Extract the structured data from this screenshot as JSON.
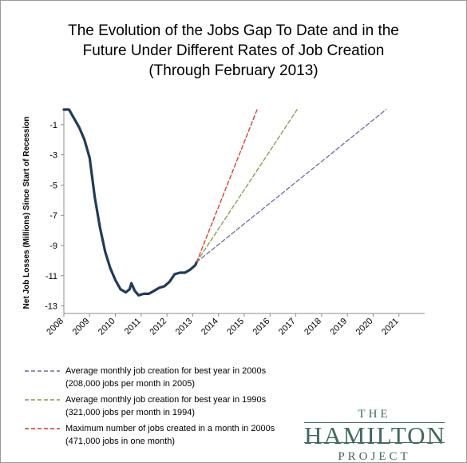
{
  "title_lines": [
    "The Evolution of the Jobs Gap To Date and in the",
    "Future Under Different Rates of Job Creation",
    "(Through February 2013)"
  ],
  "chart_data": {
    "type": "line",
    "ylabel": "Net Job Losses (Millions)  Since Start of Recession",
    "xlim": [
      2008,
      2022
    ],
    "ylim": [
      -13.5,
      0
    ],
    "x_ticks": [
      "2008",
      "2009",
      "2010",
      "2011",
      "2012",
      "2013",
      "2014",
      "2015",
      "2016",
      "2017",
      "2018",
      "2019",
      "2020",
      "2021"
    ],
    "y_ticks": [
      "-1",
      "-3",
      "-5",
      "-7",
      "-9",
      "-11",
      "-13"
    ],
    "y_tick_values": [
      -1,
      -3,
      -5,
      -7,
      -9,
      -11,
      -13
    ],
    "series": [
      {
        "name": "",
        "style": "solid",
        "color": "#1f3a5f",
        "points": [
          [
            2008.0,
            0.0
          ],
          [
            2008.2,
            0.0
          ],
          [
            2008.4,
            -0.6
          ],
          [
            2008.6,
            -1.2
          ],
          [
            2008.8,
            -2.0
          ],
          [
            2009.0,
            -3.2
          ],
          [
            2009.2,
            -5.8
          ],
          [
            2009.4,
            -7.8
          ],
          [
            2009.6,
            -9.4
          ],
          [
            2009.8,
            -10.5
          ],
          [
            2010.0,
            -11.3
          ],
          [
            2010.2,
            -11.9
          ],
          [
            2010.4,
            -12.1
          ],
          [
            2010.55,
            -11.9
          ],
          [
            2010.62,
            -11.5
          ],
          [
            2010.75,
            -12.0
          ],
          [
            2010.9,
            -12.3
          ],
          [
            2011.1,
            -12.2
          ],
          [
            2011.3,
            -12.2
          ],
          [
            2011.5,
            -12.0
          ],
          [
            2011.7,
            -11.8
          ],
          [
            2011.9,
            -11.7
          ],
          [
            2012.1,
            -11.4
          ],
          [
            2012.3,
            -10.9
          ],
          [
            2012.5,
            -10.8
          ],
          [
            2012.7,
            -10.8
          ],
          [
            2012.9,
            -10.6
          ],
          [
            2013.1,
            -10.3
          ],
          [
            2013.15,
            -10.1
          ]
        ]
      },
      {
        "name": "Average monthly job creation for best year in 2000s",
        "style": "dashed",
        "color": "#6e6a9e",
        "points": [
          [
            2013.15,
            -10.1
          ],
          [
            2020.5,
            0.0
          ]
        ]
      },
      {
        "name": "Average monthly job creation for best year in 1990s",
        "style": "dashed",
        "color": "#7f9a47",
        "points": [
          [
            2013.15,
            -10.1
          ],
          [
            2017.05,
            0.0
          ]
        ]
      },
      {
        "name": "Maximum number of jobs created in a month in 2000s",
        "style": "dashed",
        "color": "#d7362b",
        "points": [
          [
            2013.15,
            -10.1
          ],
          [
            2015.5,
            0.0
          ]
        ]
      }
    ]
  },
  "legend": [
    {
      "line1": "Average monthly job creation for best year in 2000s",
      "line2": "(208,000 jobs per month in 2005)",
      "color": "#6e6a9e"
    },
    {
      "line1": "Average monthly job creation for best year in 1990s",
      "line2": "(321,000 jobs per month in 1994)",
      "color": "#7f9a47"
    },
    {
      "line1": "Maximum number of jobs created in a month in 2000s",
      "line2": "(471,000 jobs in one month)",
      "color": "#d7362b"
    }
  ],
  "logo": {
    "top": "THE",
    "middle": "HAMILTON",
    "bottom": "PROJECT"
  }
}
